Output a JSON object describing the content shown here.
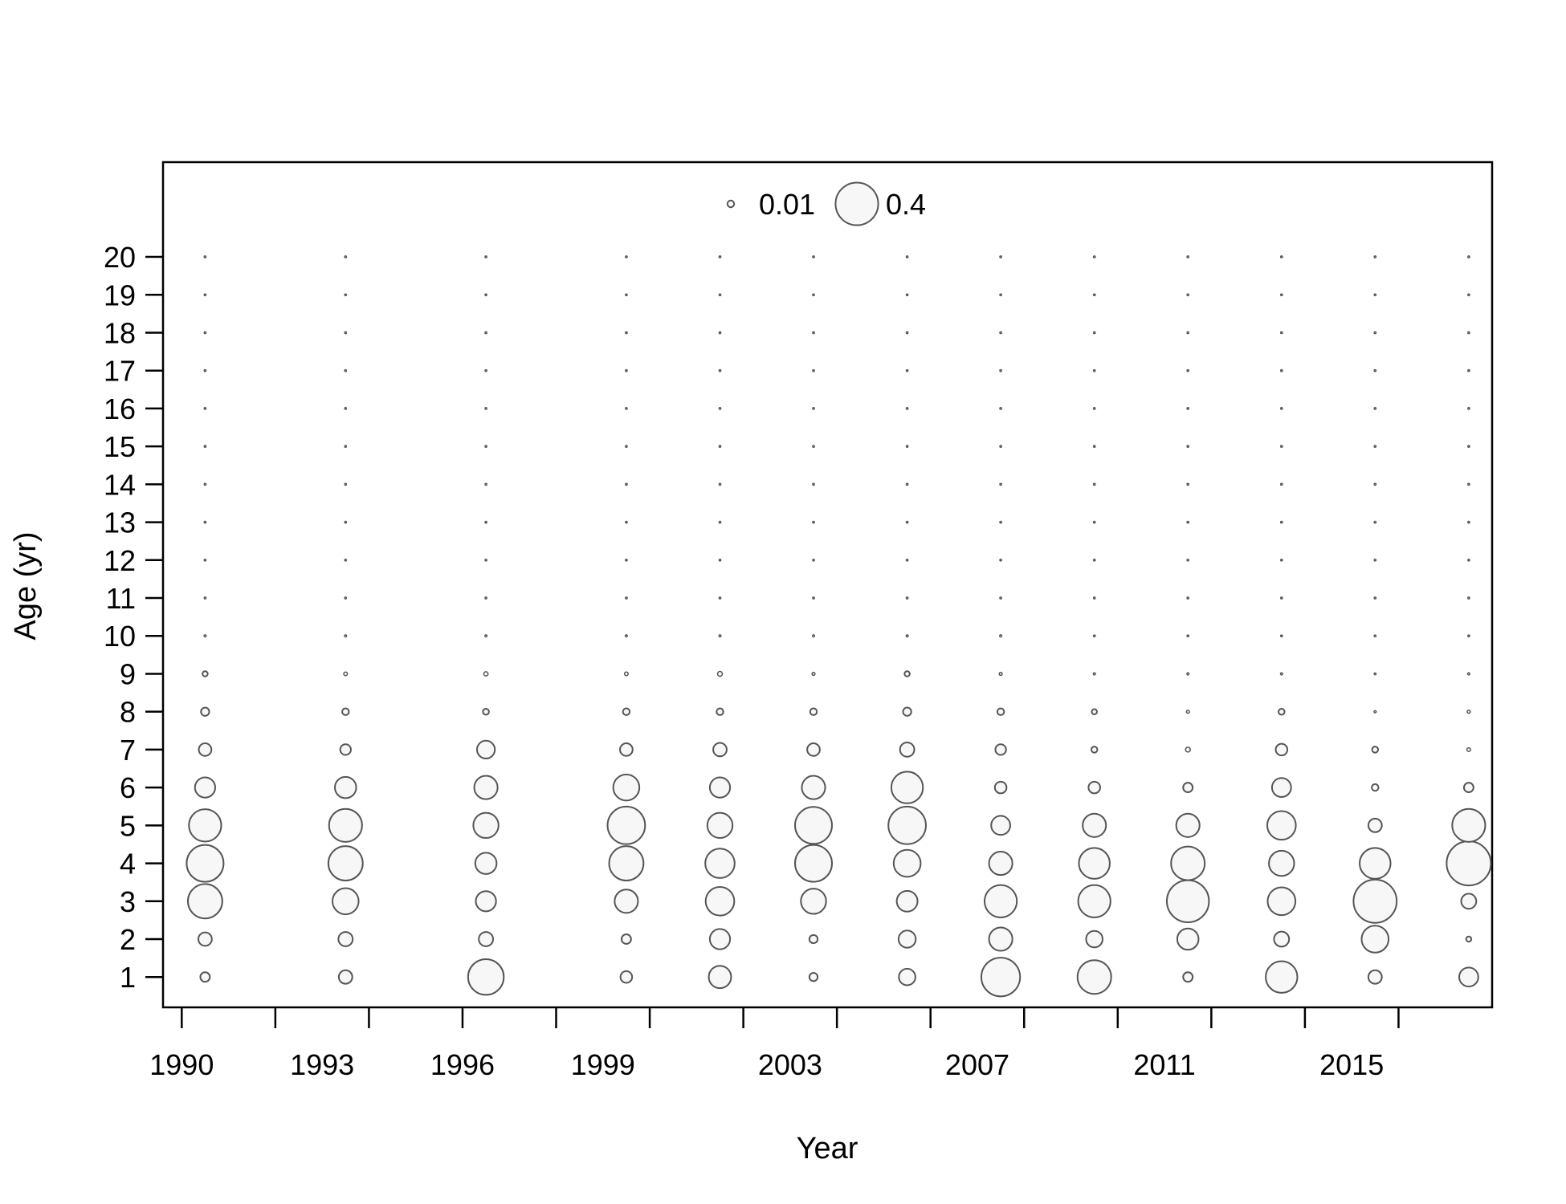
{
  "chart_data": {
    "type": "scatter",
    "subtype": "bubble",
    "xlabel": "Year",
    "ylabel": "Age (yr)",
    "xlim": [
      1989.6,
      2018.0
    ],
    "ylim": [
      0.2,
      22.5
    ],
    "x_ticks": [
      1990,
      1992,
      1994,
      1996,
      1998,
      2000,
      2002,
      2004,
      2006,
      2008,
      2010,
      2012,
      2014,
      2016
    ],
    "x_tick_labels": [
      "1990",
      "1993",
      "1996",
      "1999",
      "2003",
      "2007",
      "2011",
      "2015"
    ],
    "x_tick_label_positions": [
      1990,
      1993,
      1996,
      1999,
      2003,
      2007,
      2011,
      2015
    ],
    "y_ticks": [
      1,
      2,
      3,
      4,
      5,
      6,
      7,
      8,
      9,
      10,
      11,
      12,
      13,
      14,
      15,
      16,
      17,
      18,
      19,
      20
    ],
    "y_tick_labels": [
      "1",
      "2",
      "3",
      "4",
      "5",
      "6",
      "7",
      "8",
      "9",
      "10",
      "11",
      "12",
      "13",
      "14",
      "15",
      "16",
      "17",
      "18",
      "19",
      "20"
    ],
    "grid": false,
    "legend": {
      "placement": "top-center",
      "entries": [
        {
          "label": "0.01",
          "value": 0.01
        },
        {
          "label": "0.4",
          "value": 0.4
        }
      ]
    },
    "years": [
      1990.5,
      1993.5,
      1996.5,
      1999.5,
      2001.5,
      2003.5,
      2005.5,
      2007.5,
      2009.5,
      2011.5,
      2013.5,
      2015.5,
      2017.5
    ],
    "ages": [
      1,
      2,
      3,
      4,
      5,
      6,
      7,
      8,
      9,
      10,
      11,
      12,
      13,
      14,
      15,
      16,
      17,
      18,
      19,
      20
    ],
    "proportions": [
      [
        0.02,
        0.04,
        0.26,
        0.3,
        0.23,
        0.09,
        0.035,
        0.015,
        0.006,
        0.001,
        0.0005,
        0.0005,
        0.0005,
        0.0005,
        0.0005,
        0.0005,
        0.0005,
        0.0005,
        0.0005,
        0.0005
      ],
      [
        0.04,
        0.045,
        0.15,
        0.26,
        0.24,
        0.1,
        0.025,
        0.01,
        0.003,
        0.001,
        0.0005,
        0.0005,
        0.0005,
        0.0005,
        0.0005,
        0.0005,
        0.0005,
        0.0005,
        0.0005,
        0.0005
      ],
      [
        0.28,
        0.045,
        0.09,
        0.1,
        0.14,
        0.12,
        0.07,
        0.008,
        0.004,
        0.001,
        0.0005,
        0.0005,
        0.0005,
        0.0005,
        0.0005,
        0.0005,
        0.0005,
        0.0005,
        0.0005,
        0.0005
      ],
      [
        0.03,
        0.02,
        0.12,
        0.26,
        0.31,
        0.15,
        0.035,
        0.01,
        0.003,
        0.001,
        0.0005,
        0.0005,
        0.0005,
        0.0005,
        0.0005,
        0.0005,
        0.0005,
        0.0005,
        0.0005,
        0.0005
      ],
      [
        0.11,
        0.09,
        0.18,
        0.19,
        0.14,
        0.09,
        0.04,
        0.01,
        0.005,
        0.001,
        0.0005,
        0.0005,
        0.0005,
        0.0005,
        0.0005,
        0.0005,
        0.0005,
        0.0005,
        0.0005,
        0.0005
      ],
      [
        0.015,
        0.015,
        0.14,
        0.3,
        0.3,
        0.12,
        0.035,
        0.01,
        0.002,
        0.001,
        0.0005,
        0.0005,
        0.0005,
        0.0005,
        0.0005,
        0.0005,
        0.0005,
        0.0005,
        0.0005,
        0.0005
      ],
      [
        0.06,
        0.065,
        0.095,
        0.16,
        0.31,
        0.22,
        0.045,
        0.015,
        0.006,
        0.001,
        0.0005,
        0.0005,
        0.0005,
        0.0005,
        0.0005,
        0.0005,
        0.0005,
        0.0005,
        0.0005,
        0.0005
      ],
      [
        0.33,
        0.12,
        0.23,
        0.12,
        0.08,
        0.03,
        0.025,
        0.01,
        0.002,
        0.001,
        0.0005,
        0.0005,
        0.0005,
        0.0005,
        0.0005,
        0.0005,
        0.0005,
        0.0005,
        0.0005,
        0.0005
      ],
      [
        0.25,
        0.06,
        0.23,
        0.21,
        0.12,
        0.03,
        0.008,
        0.006,
        0.001,
        0.0005,
        0.0005,
        0.0005,
        0.0005,
        0.0005,
        0.0005,
        0.0005,
        0.0005,
        0.0005,
        0.0005,
        0.0005
      ],
      [
        0.02,
        0.1,
        0.39,
        0.25,
        0.12,
        0.02,
        0.005,
        0.002,
        0.001,
        0.0005,
        0.0005,
        0.0005,
        0.0005,
        0.0005,
        0.0005,
        0.0005,
        0.0005,
        0.0005,
        0.0005,
        0.0005
      ],
      [
        0.22,
        0.05,
        0.17,
        0.14,
        0.18,
        0.08,
        0.03,
        0.008,
        0.001,
        0.0005,
        0.0005,
        0.0005,
        0.0005,
        0.0005,
        0.0005,
        0.0005,
        0.0005,
        0.0005,
        0.0005,
        0.0005
      ],
      [
        0.04,
        0.16,
        0.41,
        0.21,
        0.04,
        0.01,
        0.008,
        0.001,
        0.0005,
        0.0005,
        0.0005,
        0.0005,
        0.0005,
        0.0005,
        0.0005,
        0.0005,
        0.0005,
        0.0005,
        0.0005,
        0.0005
      ],
      [
        0.08,
        0.006,
        0.05,
        0.43,
        0.24,
        0.02,
        0.003,
        0.002,
        0.001,
        0.0005,
        0.0005,
        0.0005,
        0.0005,
        0.0005,
        0.0005,
        0.0005,
        0.0005,
        0.0005,
        0.0005,
        0.0005
      ]
    ],
    "colors": {
      "bubble_stroke": "#555555",
      "bubble_fill": "#f7f7f7",
      "axis": "#000000"
    }
  }
}
